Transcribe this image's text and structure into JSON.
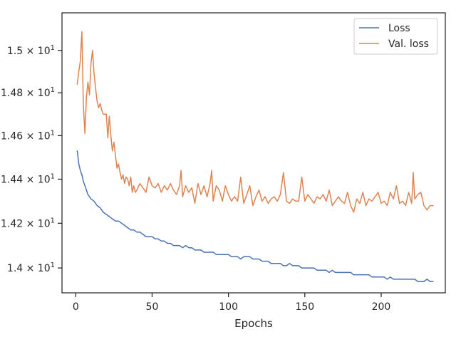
{
  "chart_data": {
    "type": "line",
    "title": "",
    "xlabel": "Epochs",
    "ylabel": "",
    "xlim": [
      -9,
      242
    ],
    "ylim": [
      13.89,
      15.18
    ],
    "y_scale": "log",
    "grid": false,
    "legend_position": "top-right",
    "x_ticks": [
      {
        "value": 0,
        "label": "0"
      },
      {
        "value": 50,
        "label": "50"
      },
      {
        "value": 100,
        "label": "100"
      },
      {
        "value": 150,
        "label": "150"
      },
      {
        "value": 200,
        "label": "200"
      }
    ],
    "y_ticks": [
      {
        "value": 14.0,
        "mantissa": "1.4",
        "exp": "1"
      },
      {
        "value": 14.2,
        "mantissa": "1.42",
        "exp": "1"
      },
      {
        "value": 14.4,
        "mantissa": "1.44",
        "exp": "1"
      },
      {
        "value": 14.6,
        "mantissa": "1.46",
        "exp": "1"
      },
      {
        "value": 14.8,
        "mantissa": "1.48",
        "exp": "1"
      },
      {
        "value": 15.0,
        "mantissa": "1.5",
        "exp": "1"
      }
    ],
    "series": [
      {
        "name": "Loss",
        "color": "#4c72b0",
        "points": [
          [
            1,
            14.53
          ],
          [
            2,
            14.47
          ],
          [
            3,
            14.44
          ],
          [
            4,
            14.42
          ],
          [
            5,
            14.39
          ],
          [
            6,
            14.37
          ],
          [
            7,
            14.35
          ],
          [
            8,
            14.33
          ],
          [
            9,
            14.32
          ],
          [
            10,
            14.31
          ],
          [
            12,
            14.3
          ],
          [
            14,
            14.28
          ],
          [
            16,
            14.27
          ],
          [
            18,
            14.25
          ],
          [
            20,
            14.24
          ],
          [
            22,
            14.23
          ],
          [
            24,
            14.22
          ],
          [
            26,
            14.21
          ],
          [
            28,
            14.21
          ],
          [
            30,
            14.2
          ],
          [
            32,
            14.19
          ],
          [
            34,
            14.18
          ],
          [
            36,
            14.17
          ],
          [
            38,
            14.17
          ],
          [
            40,
            14.16
          ],
          [
            42,
            14.16
          ],
          [
            44,
            14.15
          ],
          [
            46,
            14.14
          ],
          [
            48,
            14.14
          ],
          [
            50,
            14.14
          ],
          [
            52,
            14.13
          ],
          [
            54,
            14.13
          ],
          [
            56,
            14.12
          ],
          [
            58,
            14.12
          ],
          [
            60,
            14.11
          ],
          [
            62,
            14.11
          ],
          [
            64,
            14.1
          ],
          [
            66,
            14.1
          ],
          [
            68,
            14.1
          ],
          [
            70,
            14.09
          ],
          [
            72,
            14.1
          ],
          [
            74,
            14.09
          ],
          [
            76,
            14.09
          ],
          [
            78,
            14.08
          ],
          [
            80,
            14.08
          ],
          [
            82,
            14.08
          ],
          [
            84,
            14.07
          ],
          [
            86,
            14.07
          ],
          [
            88,
            14.07
          ],
          [
            90,
            14.07
          ],
          [
            92,
            14.06
          ],
          [
            94,
            14.06
          ],
          [
            96,
            14.06
          ],
          [
            98,
            14.06
          ],
          [
            100,
            14.06
          ],
          [
            102,
            14.05
          ],
          [
            104,
            14.05
          ],
          [
            106,
            14.05
          ],
          [
            108,
            14.04
          ],
          [
            110,
            14.05
          ],
          [
            112,
            14.05
          ],
          [
            114,
            14.05
          ],
          [
            116,
            14.04
          ],
          [
            118,
            14.04
          ],
          [
            120,
            14.04
          ],
          [
            122,
            14.03
          ],
          [
            124,
            14.03
          ],
          [
            126,
            14.03
          ],
          [
            128,
            14.02
          ],
          [
            130,
            14.02
          ],
          [
            132,
            14.02
          ],
          [
            134,
            14.02
          ],
          [
            136,
            14.01
          ],
          [
            138,
            14.01
          ],
          [
            140,
            14.02
          ],
          [
            142,
            14.01
          ],
          [
            144,
            14.01
          ],
          [
            146,
            14.01
          ],
          [
            148,
            14.0
          ],
          [
            150,
            14.0
          ],
          [
            152,
            14.0
          ],
          [
            154,
            14.0
          ],
          [
            156,
            14.0
          ],
          [
            158,
            13.99
          ],
          [
            160,
            13.99
          ],
          [
            162,
            13.99
          ],
          [
            164,
            13.99
          ],
          [
            166,
            13.98
          ],
          [
            168,
            13.99
          ],
          [
            170,
            13.98
          ],
          [
            172,
            13.98
          ],
          [
            174,
            13.98
          ],
          [
            176,
            13.98
          ],
          [
            178,
            13.98
          ],
          [
            180,
            13.98
          ],
          [
            182,
            13.97
          ],
          [
            184,
            13.97
          ],
          [
            186,
            13.97
          ],
          [
            188,
            13.97
          ],
          [
            190,
            13.97
          ],
          [
            192,
            13.97
          ],
          [
            194,
            13.96
          ],
          [
            196,
            13.96
          ],
          [
            198,
            13.96
          ],
          [
            200,
            13.96
          ],
          [
            202,
            13.96
          ],
          [
            204,
            13.95
          ],
          [
            206,
            13.96
          ],
          [
            208,
            13.95
          ],
          [
            210,
            13.95
          ],
          [
            212,
            13.95
          ],
          [
            214,
            13.95
          ],
          [
            216,
            13.95
          ],
          [
            218,
            13.95
          ],
          [
            220,
            13.95
          ],
          [
            222,
            13.95
          ],
          [
            224,
            13.94
          ],
          [
            226,
            13.94
          ],
          [
            228,
            13.94
          ],
          [
            230,
            13.95
          ],
          [
            232,
            13.94
          ],
          [
            234,
            13.94
          ]
        ]
      },
      {
        "name": "Val. loss",
        "color": "#dd8452",
        "points": [
          [
            1,
            14.84
          ],
          [
            2,
            14.9
          ],
          [
            3,
            14.95
          ],
          [
            4,
            15.09
          ],
          [
            5,
            14.74
          ],
          [
            6,
            14.61
          ],
          [
            7,
            14.78
          ],
          [
            8,
            14.85
          ],
          [
            9,
            14.79
          ],
          [
            10,
            14.94
          ],
          [
            11,
            15.0
          ],
          [
            12,
            14.89
          ],
          [
            13,
            14.82
          ],
          [
            14,
            14.76
          ],
          [
            15,
            14.73
          ],
          [
            16,
            14.75
          ],
          [
            17,
            14.72
          ],
          [
            18,
            14.7
          ],
          [
            19,
            14.7
          ],
          [
            20,
            14.7
          ],
          [
            21,
            14.59
          ],
          [
            22,
            14.69
          ],
          [
            23,
            14.6
          ],
          [
            24,
            14.53
          ],
          [
            25,
            14.57
          ],
          [
            26,
            14.51
          ],
          [
            27,
            14.45
          ],
          [
            28,
            14.47
          ],
          [
            29,
            14.43
          ],
          [
            30,
            14.4
          ],
          [
            31,
            14.42
          ],
          [
            32,
            14.38
          ],
          [
            33,
            14.41
          ],
          [
            34,
            14.4
          ],
          [
            35,
            14.37
          ],
          [
            36,
            14.41
          ],
          [
            37,
            14.34
          ],
          [
            38,
            14.37
          ],
          [
            39,
            14.34
          ],
          [
            40,
            14.35
          ],
          [
            42,
            14.38
          ],
          [
            44,
            14.36
          ],
          [
            46,
            14.34
          ],
          [
            48,
            14.41
          ],
          [
            50,
            14.37
          ],
          [
            52,
            14.36
          ],
          [
            54,
            14.38
          ],
          [
            56,
            14.34
          ],
          [
            58,
            14.37
          ],
          [
            60,
            14.35
          ],
          [
            62,
            14.38
          ],
          [
            64,
            14.35
          ],
          [
            66,
            14.33
          ],
          [
            68,
            14.37
          ],
          [
            69,
            14.44
          ],
          [
            70,
            14.32
          ],
          [
            72,
            14.37
          ],
          [
            74,
            14.34
          ],
          [
            76,
            14.36
          ],
          [
            78,
            14.29
          ],
          [
            80,
            14.38
          ],
          [
            82,
            14.33
          ],
          [
            84,
            14.37
          ],
          [
            86,
            14.32
          ],
          [
            88,
            14.38
          ],
          [
            89,
            14.44
          ],
          [
            90,
            14.3
          ],
          [
            92,
            14.37
          ],
          [
            94,
            14.35
          ],
          [
            96,
            14.3
          ],
          [
            98,
            14.37
          ],
          [
            100,
            14.33
          ],
          [
            102,
            14.3
          ],
          [
            104,
            14.32
          ],
          [
            106,
            14.3
          ],
          [
            108,
            14.41
          ],
          [
            110,
            14.29
          ],
          [
            112,
            14.33
          ],
          [
            114,
            14.37
          ],
          [
            116,
            14.28
          ],
          [
            118,
            14.32
          ],
          [
            120,
            14.35
          ],
          [
            122,
            14.3
          ],
          [
            124,
            14.32
          ],
          [
            126,
            14.29
          ],
          [
            128,
            14.31
          ],
          [
            130,
            14.32
          ],
          [
            132,
            14.3
          ],
          [
            134,
            14.33
          ],
          [
            136,
            14.43
          ],
          [
            138,
            14.3
          ],
          [
            140,
            14.29
          ],
          [
            142,
            14.31
          ],
          [
            144,
            14.3
          ],
          [
            146,
            14.3
          ],
          [
            148,
            14.41
          ],
          [
            150,
            14.3
          ],
          [
            152,
            14.33
          ],
          [
            154,
            14.31
          ],
          [
            156,
            14.29
          ],
          [
            158,
            14.32
          ],
          [
            160,
            14.31
          ],
          [
            162,
            14.33
          ],
          [
            164,
            14.3
          ],
          [
            166,
            14.35
          ],
          [
            168,
            14.28
          ],
          [
            170,
            14.3
          ],
          [
            172,
            14.32
          ],
          [
            174,
            14.3
          ],
          [
            176,
            14.29
          ],
          [
            178,
            14.34
          ],
          [
            180,
            14.28
          ],
          [
            182,
            14.25
          ],
          [
            184,
            14.31
          ],
          [
            186,
            14.29
          ],
          [
            188,
            14.34
          ],
          [
            190,
            14.28
          ],
          [
            192,
            14.31
          ],
          [
            194,
            14.3
          ],
          [
            196,
            14.32
          ],
          [
            198,
            14.34
          ],
          [
            200,
            14.29
          ],
          [
            202,
            14.3
          ],
          [
            204,
            14.28
          ],
          [
            206,
            14.34
          ],
          [
            208,
            14.31
          ],
          [
            210,
            14.37
          ],
          [
            212,
            14.29
          ],
          [
            214,
            14.3
          ],
          [
            216,
            14.28
          ],
          [
            218,
            14.34
          ],
          [
            220,
            14.29
          ],
          [
            221,
            14.43
          ],
          [
            222,
            14.31
          ],
          [
            224,
            14.33
          ],
          [
            226,
            14.34
          ],
          [
            228,
            14.28
          ],
          [
            230,
            14.26
          ],
          [
            232,
            14.28
          ],
          [
            234,
            14.28
          ]
        ]
      }
    ]
  }
}
